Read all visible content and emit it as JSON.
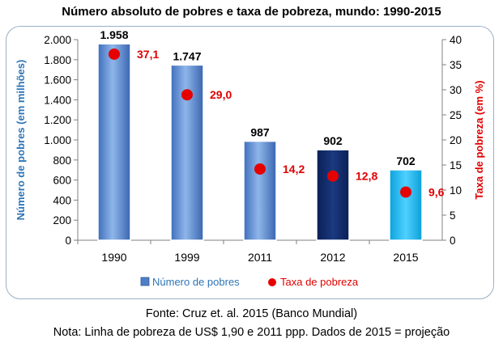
{
  "chart_data": {
    "type": "bar",
    "title": "Número absoluto de pobres e taxa de pobreza, mundo: 1990-2015",
    "categories": [
      "1990",
      "1999",
      "2011",
      "2012",
      "2015"
    ],
    "series": [
      {
        "name": "Número de pobres",
        "kind": "bar",
        "axis": "left",
        "values": [
          1958,
          1747,
          987,
          902,
          702
        ],
        "labels": [
          "1.958",
          "1.747",
          "987",
          "902",
          "702"
        ]
      },
      {
        "name": "Taxa de pobreza",
        "kind": "scatter",
        "axis": "right",
        "values": [
          37.1,
          29.0,
          14.2,
          12.8,
          9.6
        ],
        "labels": [
          "37,1",
          "29,0",
          "14,2",
          "12,8",
          "9,6"
        ]
      }
    ],
    "bar_colors": [
      "#5b8fd6",
      "#5b8fd6",
      "#5b8fd6",
      "#0c2766",
      "#14b8f0"
    ],
    "marker_color": "#e60000",
    "label_color_right": "#e00000",
    "ylabel": "Número de pobres (em milhões)",
    "ylabel_color": "#2e75b6",
    "y2label": "Taxa de pobreza (em %)",
    "y2label_color": "#e00000",
    "ylim": [
      0,
      2000
    ],
    "y2lim": [
      0,
      40
    ],
    "yticks": [
      0,
      200,
      400,
      600,
      800,
      1000,
      1200,
      1400,
      1600,
      1800,
      2000
    ],
    "ytick_labels": [
      "0",
      "200",
      "400",
      "600",
      "800",
      "1.000",
      "1.200",
      "1.400",
      "1.600",
      "1.800",
      "2.000"
    ],
    "y2ticks": [
      0,
      5,
      10,
      15,
      20,
      25,
      30,
      35,
      40
    ],
    "y2tick_labels": [
      "0",
      "5",
      "10",
      "15",
      "20",
      "25",
      "30",
      "35",
      "40"
    ],
    "grid": false,
    "legend_position": "bottom"
  },
  "footer": {
    "source": "Fonte: Cruz et. al. 2015 (Banco Mundial)",
    "note": "Nota: Linha de pobreza de US$ 1,90 e 2011 ppp. Dados de 2015 = projeção"
  }
}
